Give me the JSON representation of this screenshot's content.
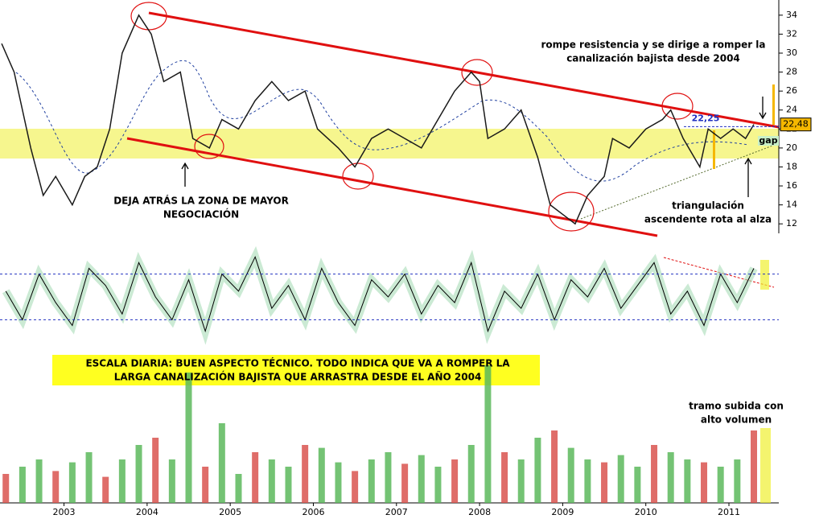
{
  "chart_data": [
    {
      "type": "line",
      "panel": "price",
      "x": [
        2002.25,
        2002.4,
        2002.6,
        2002.75,
        2002.9,
        2003.1,
        2003.25,
        2003.4,
        2003.55,
        2003.7,
        2003.9,
        2004.05,
        2004.2,
        2004.4,
        2004.55,
        2004.75,
        2004.9,
        2005.1,
        2005.3,
        2005.5,
        2005.7,
        2005.9,
        2006.05,
        2006.3,
        2006.5,
        2006.7,
        2006.9,
        2007.1,
        2007.3,
        2007.5,
        2007.7,
        2007.9,
        2008.0,
        2008.1,
        2008.3,
        2008.5,
        2008.7,
        2008.85,
        2009.0,
        2009.15,
        2009.3,
        2009.5,
        2009.6,
        2009.8,
        2010.0,
        2010.2,
        2010.3,
        2010.45,
        2010.65,
        2010.75,
        2010.9,
        2011.05,
        2011.2,
        2011.3
      ],
      "series": [
        {
          "color": "#1a1a1a",
          "values": [
            31,
            28,
            20,
            15,
            17,
            14,
            17,
            18,
            22,
            30,
            34,
            32,
            27,
            28,
            21,
            20,
            23,
            22,
            25,
            27,
            25,
            26,
            22,
            20,
            18,
            21,
            22,
            21,
            20,
            23,
            26,
            28,
            27,
            21,
            22,
            24,
            19,
            14,
            13,
            12,
            15,
            17,
            21,
            20,
            22,
            23,
            24,
            21,
            18,
            22,
            21,
            22,
            21,
            22.48
          ]
        }
      ],
      "xlim": [
        2002.23,
        2011.6
      ],
      "xticks": [
        2003,
        2004,
        2005,
        2006,
        2007,
        2008,
        2009,
        2010,
        2011
      ],
      "ylim": [
        11,
        35.6
      ],
      "yticks": [
        12,
        14,
        16,
        18,
        20,
        22,
        24,
        26,
        28,
        30,
        32,
        34
      ],
      "last_price": {
        "value": 22.48,
        "label": "22,48"
      },
      "resistance": {
        "value": 22.25,
        "label": "22,25"
      },
      "annotations": {
        "breakout": [
          "rompe resistencia y se dirige a romper la",
          "canalización bajista desde 2004"
        ],
        "zone": [
          "DEJA ATRÁS LA ZONA DE MAYOR",
          "NEGOCIACIÓN"
        ],
        "triangle": [
          "triangulación",
          "ascendente rota al alza"
        ],
        "gap": "gap",
        "summary": [
          "ESCALA DIARIA: BUEN ASPECTO TÉCNICO. TODO INDICA QUE VA A ROMPER LA",
          "LARGA CANALIZACIÓN BAJISTA QUE ARRASTRA DESDE EL AÑO 2004"
        ],
        "volume": [
          "tramo subida con",
          "alto volumen"
        ]
      }
    },
    {
      "type": "line",
      "panel": "oscillator",
      "x": [
        2002.3,
        2002.5,
        2002.7,
        2002.9,
        2003.1,
        2003.3,
        2003.5,
        2003.7,
        2003.9,
        2004.1,
        2004.3,
        2004.5,
        2004.7,
        2004.9,
        2005.1,
        2005.3,
        2005.5,
        2005.7,
        2005.9,
        2006.1,
        2006.3,
        2006.5,
        2006.7,
        2006.9,
        2007.1,
        2007.3,
        2007.5,
        2007.7,
        2007.9,
        2008.1,
        2008.3,
        2008.5,
        2008.7,
        2008.9,
        2009.1,
        2009.3,
        2009.5,
        2009.7,
        2009.9,
        2010.1,
        2010.3,
        2010.5,
        2010.7,
        2010.9,
        2011.1,
        2011.3
      ],
      "series": [
        {
          "color": "#000000",
          "values": [
            55,
            30,
            70,
            45,
            25,
            75,
            60,
            35,
            80,
            50,
            30,
            65,
            20,
            70,
            55,
            85,
            40,
            60,
            30,
            75,
            45,
            25,
            65,
            50,
            70,
            35,
            60,
            45,
            80,
            20,
            55,
            40,
            70,
            30,
            65,
            50,
            75,
            40,
            60,
            80,
            35,
            55,
            25,
            70,
            45,
            75
          ]
        }
      ],
      "ylim": [
        0,
        100
      ],
      "levels": [
        70,
        30
      ]
    },
    {
      "type": "bar",
      "panel": "volume",
      "x": [
        2002.3,
        2002.5,
        2002.7,
        2002.9,
        2003.1,
        2003.3,
        2003.5,
        2003.7,
        2003.9,
        2004.1,
        2004.3,
        2004.5,
        2004.7,
        2004.9,
        2005.1,
        2005.3,
        2005.5,
        2005.7,
        2005.9,
        2006.1,
        2006.3,
        2006.5,
        2006.7,
        2006.9,
        2007.1,
        2007.3,
        2007.5,
        2007.7,
        2007.9,
        2008.1,
        2008.3,
        2008.5,
        2008.7,
        2008.9,
        2009.1,
        2009.3,
        2009.5,
        2009.7,
        2009.9,
        2010.1,
        2010.3,
        2010.5,
        2010.7,
        2010.9,
        2011.1,
        2011.3
      ],
      "series": [
        {
          "color": "#5cb85c",
          "values": [
            20,
            25,
            30,
            22,
            28,
            35,
            18,
            30,
            40,
            45,
            30,
            90,
            25,
            55,
            20,
            35,
            30,
            25,
            40,
            38,
            28,
            22,
            30,
            35,
            27,
            33,
            25,
            30,
            40,
            95,
            35,
            30,
            45,
            50,
            38,
            30,
            28,
            33,
            25,
            40,
            35,
            30,
            28,
            25,
            30,
            50
          ]
        }
      ],
      "ylim": [
        0,
        100
      ]
    }
  ]
}
